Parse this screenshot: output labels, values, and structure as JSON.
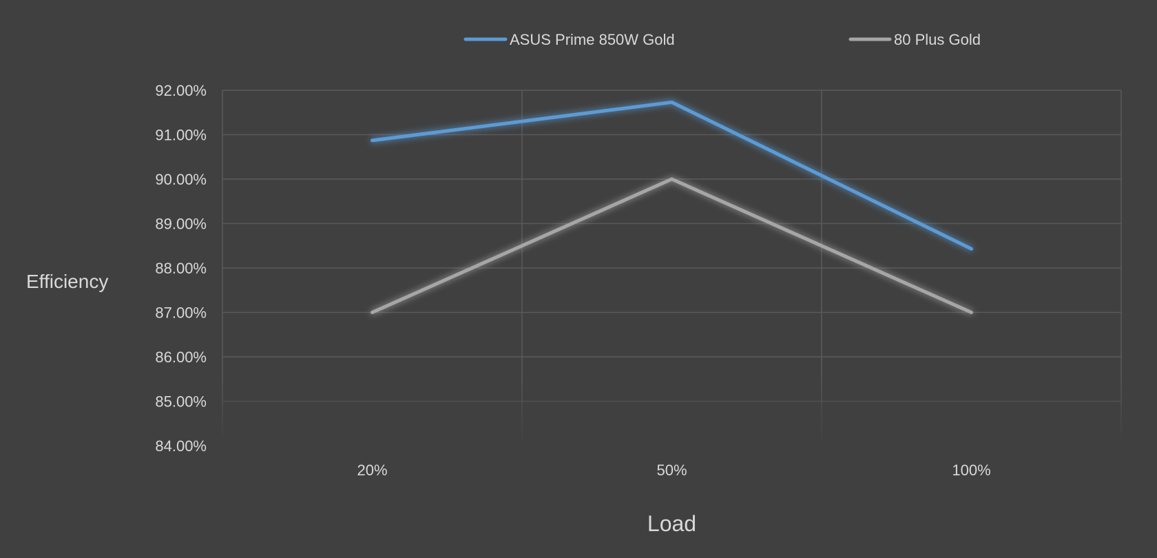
{
  "chart_data": {
    "type": "line",
    "categories": [
      "20%",
      "50%",
      "100%"
    ],
    "series": [
      {
        "name": "ASUS Prime 850W Gold",
        "values": [
          90.87,
          91.73,
          88.43
        ],
        "color": "#5b9bd5"
      },
      {
        "name": "80 Plus Gold",
        "values": [
          87.0,
          90.0,
          87.0
        ],
        "color": "#a6a6a6"
      }
    ],
    "xlabel": "Load",
    "ylabel": "Efficiency",
    "ylim": [
      84,
      92
    ],
    "yticks": [
      "84.00%",
      "85.00%",
      "86.00%",
      "87.00%",
      "88.00%",
      "89.00%",
      "90.00%",
      "91.00%",
      "92.00%"
    ],
    "grid": true,
    "legend_position": "top"
  }
}
